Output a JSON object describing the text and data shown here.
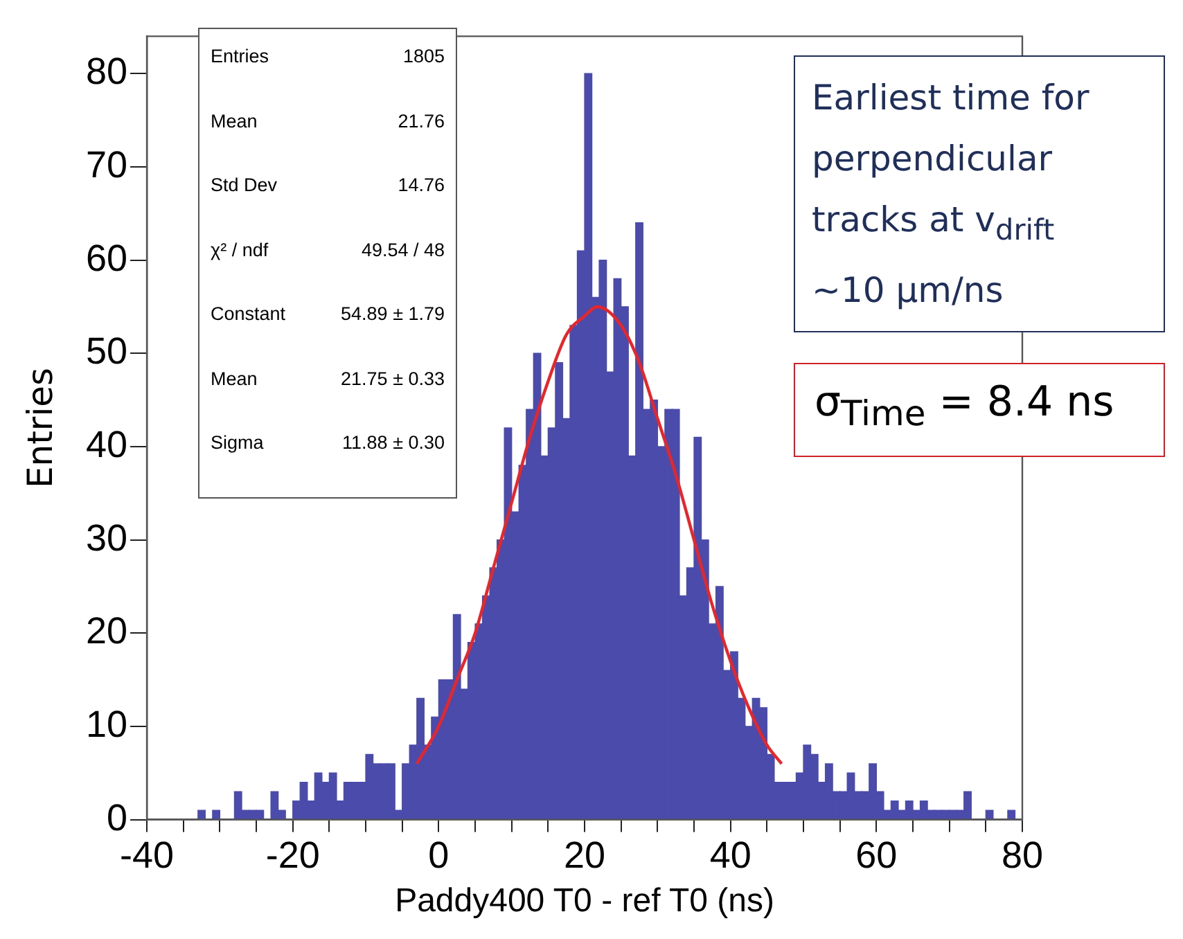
{
  "chart_data": {
    "type": "histogram",
    "xlabel": "Paddy400 T0 - ref T0 (ns)",
    "ylabel": "Entries",
    "bins": [
      -40,
      -39,
      -38,
      -37,
      -36,
      -35,
      -34,
      -33,
      -32,
      -31,
      -30,
      -29,
      -28,
      -27,
      -26,
      -25,
      -24,
      -23,
      -22,
      -21,
      -20,
      -19,
      -18,
      -17,
      -16,
      -15,
      -14,
      -13,
      -12,
      -11,
      -10,
      -9,
      -8,
      -7,
      -6,
      -5,
      -4,
      -3,
      -2,
      -1,
      0,
      1,
      2,
      3,
      4,
      5,
      6,
      7,
      8,
      9,
      10,
      11,
      12,
      13,
      14,
      15,
      16,
      17,
      18,
      19,
      20,
      21,
      22,
      23,
      24,
      25,
      26,
      27,
      28,
      29,
      30,
      31,
      32,
      33,
      34,
      35,
      36,
      37,
      38,
      39,
      40,
      41,
      42,
      43,
      44,
      45,
      46,
      47,
      48,
      49,
      50,
      51,
      52,
      53,
      54,
      55,
      56,
      57,
      58,
      59,
      60,
      61,
      62,
      63,
      64,
      65,
      66,
      67,
      68,
      69,
      70,
      71,
      72,
      73,
      74,
      75,
      76,
      77,
      78,
      79,
      80
    ],
    "series": [
      {
        "color": "#4b4bab",
        "values": [
          0,
          0,
          0,
          0,
          0,
          0,
          0,
          1,
          0,
          1,
          0,
          0,
          3,
          1,
          1,
          1,
          0,
          3,
          1,
          0,
          2,
          4,
          2,
          5,
          4,
          5,
          2,
          4,
          4,
          4,
          7,
          6,
          6,
          6,
          1,
          6,
          8,
          13,
          8,
          11,
          15,
          15,
          22,
          14,
          19,
          21,
          24,
          27,
          30,
          42,
          33,
          38,
          44,
          50,
          39,
          42,
          49,
          43,
          53,
          61,
          80,
          56,
          60,
          48,
          58,
          55,
          39,
          64,
          44,
          45,
          40,
          44,
          44,
          24,
          27,
          41,
          30,
          21,
          25,
          16,
          18,
          13,
          10,
          13,
          12,
          7,
          4,
          4,
          4,
          5,
          8,
          7,
          4,
          6,
          3,
          3,
          5,
          3,
          3,
          6,
          3,
          1,
          2,
          1,
          2,
          1,
          2,
          1,
          1,
          1,
          1,
          1,
          3,
          0,
          0,
          1,
          0,
          0,
          1,
          0
        ]
      },
      {
        "type": "line",
        "color": "#e8262a",
        "x": [
          -3,
          0,
          2.5,
          5,
          7.5,
          10,
          12.5,
          15,
          17.5,
          20,
          21.75,
          25,
          27.5,
          30,
          32.5,
          35,
          37.5,
          40,
          42.5,
          45,
          47
        ],
        "values": [
          6,
          10,
          15,
          20,
          27,
          34,
          41,
          47,
          52,
          54,
          55,
          53,
          49,
          43,
          37,
          30,
          23,
          17,
          12,
          8,
          6
        ]
      }
    ],
    "xlim": [
      -40,
      80
    ],
    "xticks": [
      -40,
      {
        "value": -35,
        "label": null
      },
      {
        "value": -30,
        "label": null
      },
      {
        "value": -25,
        "label": null
      },
      -20,
      {
        "value": -15,
        "label": null
      },
      {
        "value": -10,
        "label": null
      },
      {
        "value": -5,
        "label": null
      },
      0,
      {
        "value": 5,
        "label": null
      },
      {
        "value": 10,
        "label": null
      },
      {
        "value": 15,
        "label": null
      },
      20,
      {
        "value": 25,
        "label": null
      },
      {
        "value": 30,
        "label": null
      },
      {
        "value": 35,
        "label": null
      },
      40,
      {
        "value": 45,
        "label": null
      },
      {
        "value": 50,
        "label": null
      },
      {
        "value": 55,
        "label": null
      },
      60,
      {
        "value": 65,
        "label": null
      },
      {
        "value": 70,
        "label": null
      },
      {
        "value": 75,
        "label": null
      },
      80
    ],
    "ylim": [
      0,
      84
    ],
    "yticks": [
      0,
      10,
      20,
      30,
      40,
      50,
      60,
      70,
      80
    ],
    "grid": false,
    "legend": false,
    "marker": "none",
    "line_style": "solid",
    "annotations": [
      "Entries",
      "1805",
      "Mean",
      "21.76",
      "Std Dev",
      "14.76",
      "χ² / ndf",
      "49.54 / 48",
      "Constant",
      "54.89 ± 1.79",
      "Mean",
      "21.75 ± 0.33",
      "Sigma",
      "11.88 ± 0.30",
      "Earliest time for perpendicular tracks at v$_{drift}$ ~10 µm/ns",
      "σ$_{Time}$ = 8.4 ns"
    ]
  }
}
